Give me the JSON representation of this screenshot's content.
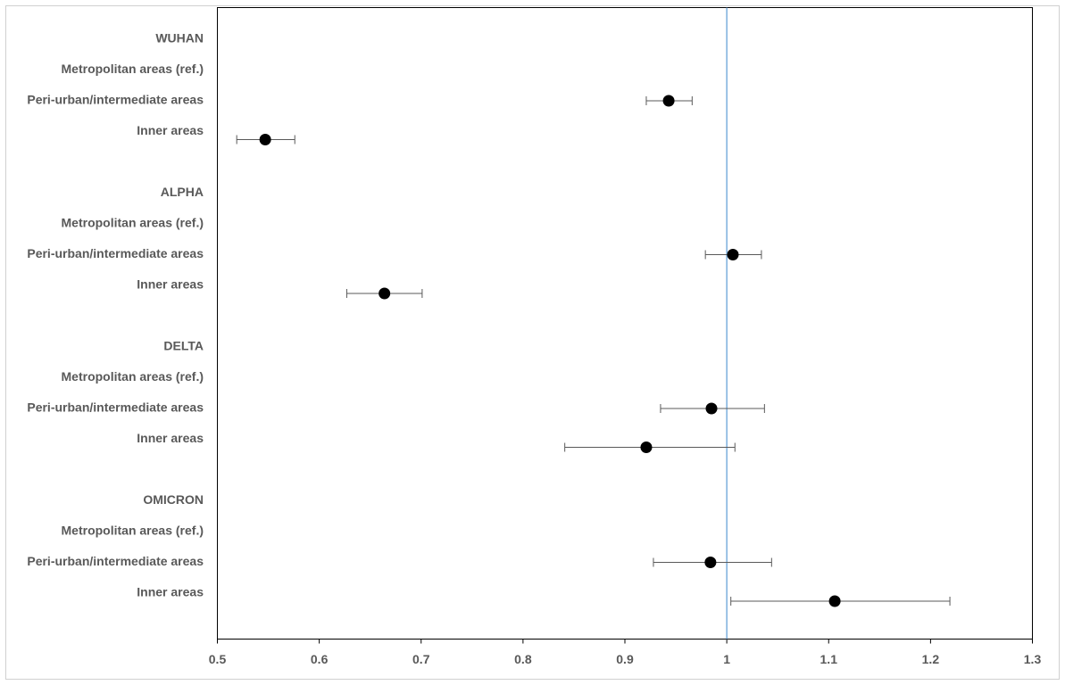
{
  "chart_data": {
    "type": "forest",
    "categories": [
      "WUHAN",
      "Metropolitan areas (ref.)",
      "Peri-urban/intermediate areas",
      "Inner areas",
      null,
      "ALPHA",
      "Metropolitan areas (ref.)",
      "Peri-urban/intermediate areas",
      "Inner areas",
      null,
      "DELTA",
      "Metropolitan areas (ref.)",
      "Peri-urban/intermediate areas",
      "Inner areas",
      null,
      "OMICRON",
      "Metropolitan areas (ref.)",
      "Peri-urban/intermediate areas",
      "Inner areas"
    ],
    "values": [
      null,
      null,
      0.943,
      0.547,
      null,
      null,
      null,
      1.006,
      0.664,
      null,
      null,
      null,
      0.985,
      0.921,
      null,
      null,
      null,
      0.984,
      1.106
    ],
    "lower": [
      null,
      null,
      0.921,
      0.519,
      null,
      null,
      null,
      0.979,
      0.627,
      null,
      null,
      null,
      0.935,
      0.841,
      null,
      null,
      null,
      0.928,
      1.004
    ],
    "upper": [
      null,
      null,
      0.966,
      0.576,
      null,
      null,
      null,
      1.034,
      0.701,
      null,
      null,
      null,
      1.037,
      1.008,
      null,
      null,
      null,
      1.044,
      1.219
    ],
    "color": "#000000",
    "reference_line": 1,
    "reference_color": "#5b9bd5",
    "xlim": [
      0.5,
      1.3
    ],
    "xticks": [
      0.5,
      0.6,
      0.7,
      0.8,
      0.9,
      1,
      1.1,
      1.2,
      1.3
    ]
  }
}
